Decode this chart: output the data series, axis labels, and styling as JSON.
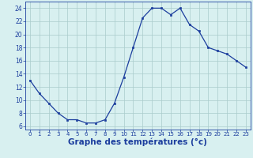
{
  "x": [
    0,
    1,
    2,
    3,
    4,
    5,
    6,
    7,
    8,
    9,
    10,
    11,
    12,
    13,
    14,
    15,
    16,
    17,
    18,
    19,
    20,
    21,
    22,
    23
  ],
  "y": [
    13,
    11,
    9.5,
    8,
    7,
    7,
    6.5,
    6.5,
    7,
    9.5,
    13.5,
    18,
    22.5,
    24,
    24,
    23,
    24,
    21.5,
    20.5,
    18,
    17.5,
    17,
    16,
    15
  ],
  "line_color": "#1c3e9e",
  "marker": "s",
  "marker_size": 2,
  "bg_color": "#d8f0f0",
  "grid_color": "#aacccc",
  "xlabel": "Graphe des températures (°c)",
  "xlabel_color": "#1c3e9e",
  "xlabel_fontsize": 7.5,
  "tick_color": "#1c3e9e",
  "ylim": [
    5.5,
    25
  ],
  "xlim": [
    -0.5,
    23.5
  ],
  "yticks": [
    6,
    8,
    10,
    12,
    14,
    16,
    18,
    20,
    22,
    24
  ],
  "xticks": [
    0,
    1,
    2,
    3,
    4,
    5,
    6,
    7,
    8,
    9,
    10,
    11,
    12,
    13,
    14,
    15,
    16,
    17,
    18,
    19,
    20,
    21,
    22,
    23
  ],
  "tick_fontsize_x": 5.0,
  "tick_fontsize_y": 5.5
}
